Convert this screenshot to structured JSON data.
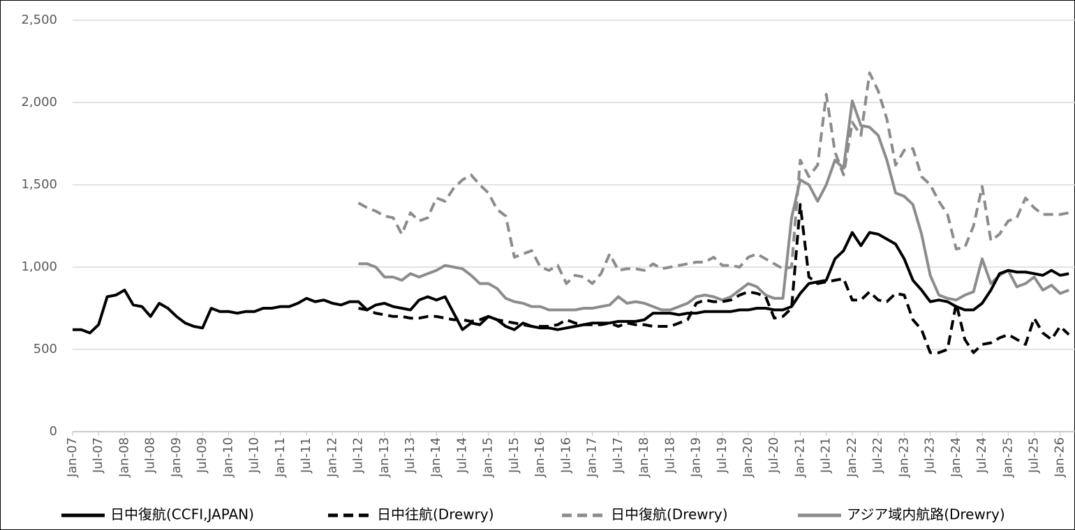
{
  "chart_data": {
    "type": "line",
    "categories": [
      "Jan-07",
      null,
      null,
      "Jul-07",
      null,
      null,
      "Jan-08",
      null,
      null,
      "Jul-08",
      null,
      null,
      "Jan-09",
      null,
      null,
      "Jul-09",
      null,
      null,
      "Jan-10",
      null,
      null,
      "Jul-10",
      null,
      null,
      "Jan-11",
      null,
      null,
      "Jul-11",
      null,
      null,
      "Jan-12",
      null,
      null,
      "Jul-12",
      null,
      null,
      "Jan-13",
      null,
      null,
      "Jul-13",
      null,
      null,
      "Jan-14",
      null,
      null,
      "Jul-14",
      null,
      null,
      "Jan-15",
      null,
      null,
      "Jul-15",
      null,
      null,
      "Jan-16",
      null,
      null,
      "Jul-16",
      null,
      null,
      "Jan-17",
      null,
      null,
      "Jul-17",
      null,
      null,
      "Jan-18",
      null,
      null,
      "Jul-18",
      null,
      null,
      "Jan-19",
      null,
      null,
      "Jul-19",
      null,
      null,
      "Jan-20",
      null,
      null,
      "Jul-20",
      null,
      null,
      "Jan-21",
      null,
      null,
      "Jul-21",
      null,
      null,
      "Jan-22",
      null,
      null,
      "Jul-22",
      null,
      null,
      "Jan-23",
      null,
      null,
      "Jul-23",
      null,
      null,
      "Jan-24",
      null,
      null,
      "Jul-24",
      null,
      null,
      "Jan-25",
      null,
      null,
      "Jul-25",
      null,
      null,
      "Jan-26",
      null
    ],
    "series": [
      {
        "name": "日中復航(CCFI,JAPAN)",
        "color": "#000000",
        "line_style": "solid",
        "values": [
          620,
          620,
          600,
          650,
          820,
          830,
          860,
          770,
          760,
          700,
          780,
          750,
          700,
          660,
          640,
          630,
          750,
          730,
          730,
          720,
          730,
          730,
          750,
          750,
          760,
          760,
          780,
          810,
          790,
          800,
          780,
          770,
          790,
          790,
          740,
          770,
          780,
          760,
          750,
          740,
          800,
          820,
          800,
          820,
          720,
          620,
          660,
          650,
          700,
          680,
          640,
          620,
          660,
          640,
          630,
          630,
          620,
          630,
          640,
          650,
          660,
          660,
          660,
          670,
          670,
          670,
          680,
          720,
          720,
          720,
          710,
          720,
          720,
          730,
          730,
          730,
          730,
          740,
          740,
          750,
          750,
          740,
          740,
          760,
          840,
          900,
          910,
          920,
          1050,
          1100,
          1210,
          1130,
          1210,
          1200,
          1170,
          1140,
          1050,
          920,
          860,
          790,
          800,
          790,
          760,
          740,
          740,
          780,
          860,
          960,
          980,
          970,
          970,
          960,
          950,
          980,
          950,
          960
        ]
      },
      {
        "name": "日中往航(Drewry)",
        "color": "#000000",
        "line_style": "dashed",
        "values": [
          null,
          null,
          null,
          null,
          null,
          null,
          null,
          null,
          null,
          null,
          null,
          null,
          null,
          null,
          null,
          null,
          null,
          null,
          null,
          null,
          null,
          null,
          null,
          null,
          null,
          null,
          null,
          null,
          null,
          null,
          null,
          null,
          null,
          750,
          740,
          720,
          710,
          700,
          700,
          690,
          690,
          700,
          700,
          690,
          680,
          680,
          670,
          680,
          700,
          680,
          670,
          660,
          650,
          640,
          640,
          640,
          650,
          680,
          660,
          650,
          650,
          650,
          660,
          640,
          660,
          650,
          650,
          640,
          640,
          640,
          660,
          680,
          780,
          800,
          790,
          790,
          800,
          830,
          850,
          840,
          820,
          690,
          700,
          750,
          1380,
          940,
          900,
          910,
          920,
          930,
          800,
          800,
          850,
          800,
          790,
          840,
          830,
          680,
          620,
          480,
          480,
          500,
          780,
          560,
          480,
          530,
          540,
          570,
          590,
          560,
          530,
          690,
          600,
          560,
          640,
          590
        ]
      },
      {
        "name": "日中復航(Drewry)",
        "color": "#8c8c8c",
        "line_style": "dashed",
        "values": [
          null,
          null,
          null,
          null,
          null,
          null,
          null,
          null,
          null,
          null,
          null,
          null,
          null,
          null,
          null,
          null,
          null,
          null,
          null,
          null,
          null,
          null,
          null,
          null,
          null,
          null,
          null,
          null,
          null,
          null,
          null,
          null,
          null,
          1390,
          1360,
          1340,
          1310,
          1300,
          1200,
          1330,
          1280,
          1300,
          1420,
          1400,
          1480,
          1530,
          1560,
          1500,
          1450,
          1350,
          1310,
          1060,
          1080,
          1100,
          1000,
          980,
          1010,
          900,
          950,
          940,
          900,
          960,
          1080,
          980,
          990,
          990,
          980,
          1020,
          990,
          1000,
          1010,
          1020,
          1030,
          1030,
          1060,
          1010,
          1010,
          1000,
          1060,
          1080,
          1050,
          1020,
          990,
          1000,
          1650,
          1550,
          1620,
          2050,
          1700,
          1560,
          1880,
          1800,
          2180,
          2070,
          1900,
          1620,
          1710,
          1720,
          1550,
          1500,
          1400,
          1320,
          1110,
          1120,
          1250,
          1490,
          1160,
          1200,
          1280,
          1300,
          1420,
          1360,
          1320,
          1320,
          1320,
          1330
        ]
      },
      {
        "name": "アジア域内航路(Drewry)",
        "color": "#8c8c8c",
        "line_style": "solid",
        "values": [
          null,
          null,
          null,
          null,
          null,
          null,
          null,
          null,
          null,
          null,
          null,
          null,
          null,
          null,
          null,
          null,
          null,
          null,
          null,
          null,
          null,
          null,
          null,
          null,
          null,
          null,
          null,
          null,
          null,
          null,
          null,
          null,
          null,
          1020,
          1020,
          1000,
          940,
          940,
          920,
          960,
          940,
          960,
          980,
          1010,
          1000,
          990,
          950,
          900,
          900,
          870,
          810,
          790,
          780,
          760,
          760,
          740,
          740,
          740,
          740,
          750,
          750,
          760,
          770,
          820,
          780,
          790,
          780,
          760,
          740,
          740,
          760,
          780,
          820,
          830,
          820,
          800,
          820,
          860,
          900,
          880,
          830,
          810,
          810,
          1300,
          1530,
          1500,
          1400,
          1500,
          1650,
          1600,
          2010,
          1860,
          1850,
          1800,
          1650,
          1450,
          1430,
          1380,
          1200,
          950,
          830,
          810,
          800,
          830,
          850,
          1050,
          900,
          950,
          980,
          880,
          900,
          940,
          860,
          890,
          840,
          860
        ]
      }
    ],
    "ylim": [
      0,
      2500
    ],
    "yticks": [
      0,
      500,
      {
        "value": 1000,
        "label": "1,000"
      },
      {
        "value": 1500,
        "label": "1,500"
      },
      {
        "value": 2000,
        "label": "2,000"
      },
      {
        "value": 2500,
        "label": "2,500"
      }
    ],
    "grid": true,
    "legend": "bottom"
  }
}
